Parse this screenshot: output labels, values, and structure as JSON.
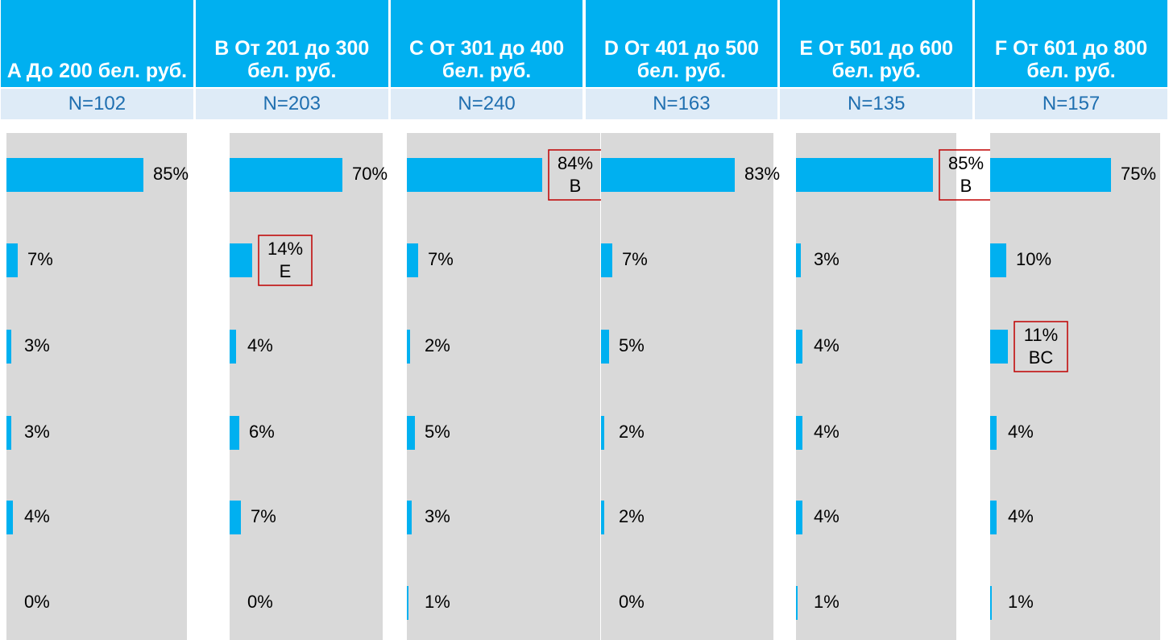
{
  "chart_data": [
    {
      "type": "bar",
      "title": "A До 200 бел. руб.",
      "subtitle": "N=102",
      "color": "#00b0f0",
      "categories": [
        null,
        null,
        null,
        null,
        null,
        null
      ],
      "values": [
        85,
        7,
        3,
        3,
        4,
        0
      ],
      "value_labels": [
        "85%",
        "7%",
        "3%",
        "3%",
        "4%",
        "0%"
      ],
      "value_notes": [
        null,
        null,
        null,
        null,
        null,
        null
      ]
    },
    {
      "type": "bar",
      "title": "B От 201 до 300 бел. руб.",
      "subtitle": "N=203",
      "color": "#00b0f0",
      "categories": [
        null,
        null,
        null,
        null,
        null,
        null
      ],
      "values": [
        70,
        14,
        4,
        6,
        7,
        0
      ],
      "value_labels": [
        "70%",
        "14%",
        "4%",
        "6%",
        "7%",
        "0%"
      ],
      "value_notes": [
        null,
        "E",
        null,
        null,
        null,
        null
      ]
    },
    {
      "type": "bar",
      "title": "C От 301 до 400 бел. руб.",
      "subtitle": "N=240",
      "color": "#00b0f0",
      "categories": [
        null,
        null,
        null,
        null,
        null,
        null
      ],
      "values": [
        84,
        7,
        2,
        5,
        3,
        1
      ],
      "value_labels": [
        "84%",
        "7%",
        "2%",
        "5%",
        "3%",
        "1%"
      ],
      "value_notes": [
        "B",
        null,
        null,
        null,
        null,
        null
      ]
    },
    {
      "type": "bar",
      "title": "D От 401 до 500 бел. руб.",
      "subtitle": "N=163",
      "color": "#00b0f0",
      "categories": [
        null,
        null,
        null,
        null,
        null,
        null
      ],
      "values": [
        83,
        7,
        5,
        2,
        2,
        0
      ],
      "value_labels": [
        "83%",
        "7%",
        "5%",
        "2%",
        "2%",
        "0%"
      ],
      "value_notes": [
        null,
        null,
        null,
        null,
        null,
        null
      ]
    },
    {
      "type": "bar",
      "title": "E От 501 до 600 бел. руб.",
      "subtitle": "N=135",
      "color": "#00b0f0",
      "categories": [
        null,
        null,
        null,
        null,
        null,
        null
      ],
      "values": [
        85,
        3,
        4,
        4,
        4,
        1
      ],
      "value_labels": [
        "85%",
        "3%",
        "4%",
        "4%",
        "4%",
        "1%"
      ],
      "value_notes": [
        "B",
        null,
        null,
        null,
        null,
        null
      ]
    },
    {
      "type": "bar",
      "title": "F От 601 до 800 бел. руб.",
      "subtitle": "N=157",
      "color": "#00b0f0",
      "categories": [
        null,
        null,
        null,
        null,
        null,
        null
      ],
      "values": [
        75,
        10,
        11,
        4,
        4,
        1
      ],
      "value_labels": [
        "75%",
        "10%",
        "11%",
        "4%",
        "4%",
        "1%"
      ],
      "value_notes": [
        null,
        null,
        "BC",
        null,
        null,
        null
      ]
    }
  ]
}
